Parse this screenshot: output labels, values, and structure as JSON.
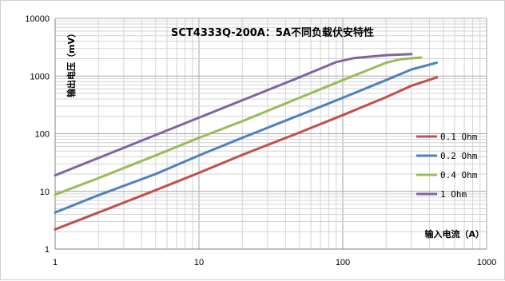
{
  "chart_data": {
    "type": "line",
    "title": "SCT4333Q-200A：5A不同负载伏安特性",
    "xlabel": "输入电流（A）",
    "ylabel": "输出电压（mV）",
    "xscale": "log",
    "yscale": "log",
    "xlim": [
      1,
      1000
    ],
    "ylim": [
      1,
      10000
    ],
    "x_ticks": [
      "1",
      "10",
      "100",
      "1000"
    ],
    "y_ticks": [
      "1",
      "10",
      "100",
      "1000",
      "10000"
    ],
    "grid": true,
    "legend_position": "right",
    "series": [
      {
        "name": "0.1 Ohm",
        "color": "#c0504d",
        "points": [
          [
            1,
            2.2
          ],
          [
            2,
            4.3
          ],
          [
            5,
            10.5
          ],
          [
            10,
            21
          ],
          [
            20,
            43
          ],
          [
            50,
            105
          ],
          [
            100,
            210
          ],
          [
            200,
            430
          ],
          [
            300,
            680
          ],
          [
            450,
            950
          ]
        ]
      },
      {
        "name": "0.2 Ohm",
        "color": "#4f81bd",
        "points": [
          [
            1,
            4.3
          ],
          [
            2,
            8.6
          ],
          [
            5,
            20
          ],
          [
            10,
            42
          ],
          [
            20,
            85
          ],
          [
            50,
            210
          ],
          [
            100,
            420
          ],
          [
            200,
            850
          ],
          [
            300,
            1300
          ],
          [
            450,
            1700
          ]
        ]
      },
      {
        "name": "0.4 Ohm",
        "color": "#9bbb59",
        "points": [
          [
            1,
            8.8
          ],
          [
            2,
            17
          ],
          [
            5,
            42
          ],
          [
            10,
            85
          ],
          [
            20,
            165
          ],
          [
            50,
            420
          ],
          [
            100,
            850
          ],
          [
            200,
            1700
          ],
          [
            250,
            1950
          ],
          [
            350,
            2100
          ]
        ]
      },
      {
        "name": "1 Ohm",
        "color": "#8064a2",
        "points": [
          [
            1,
            19
          ],
          [
            2,
            38
          ],
          [
            5,
            95
          ],
          [
            10,
            190
          ],
          [
            20,
            380
          ],
          [
            50,
            950
          ],
          [
            90,
            1750
          ],
          [
            120,
            2050
          ],
          [
            200,
            2300
          ],
          [
            300,
            2400
          ]
        ]
      }
    ]
  }
}
